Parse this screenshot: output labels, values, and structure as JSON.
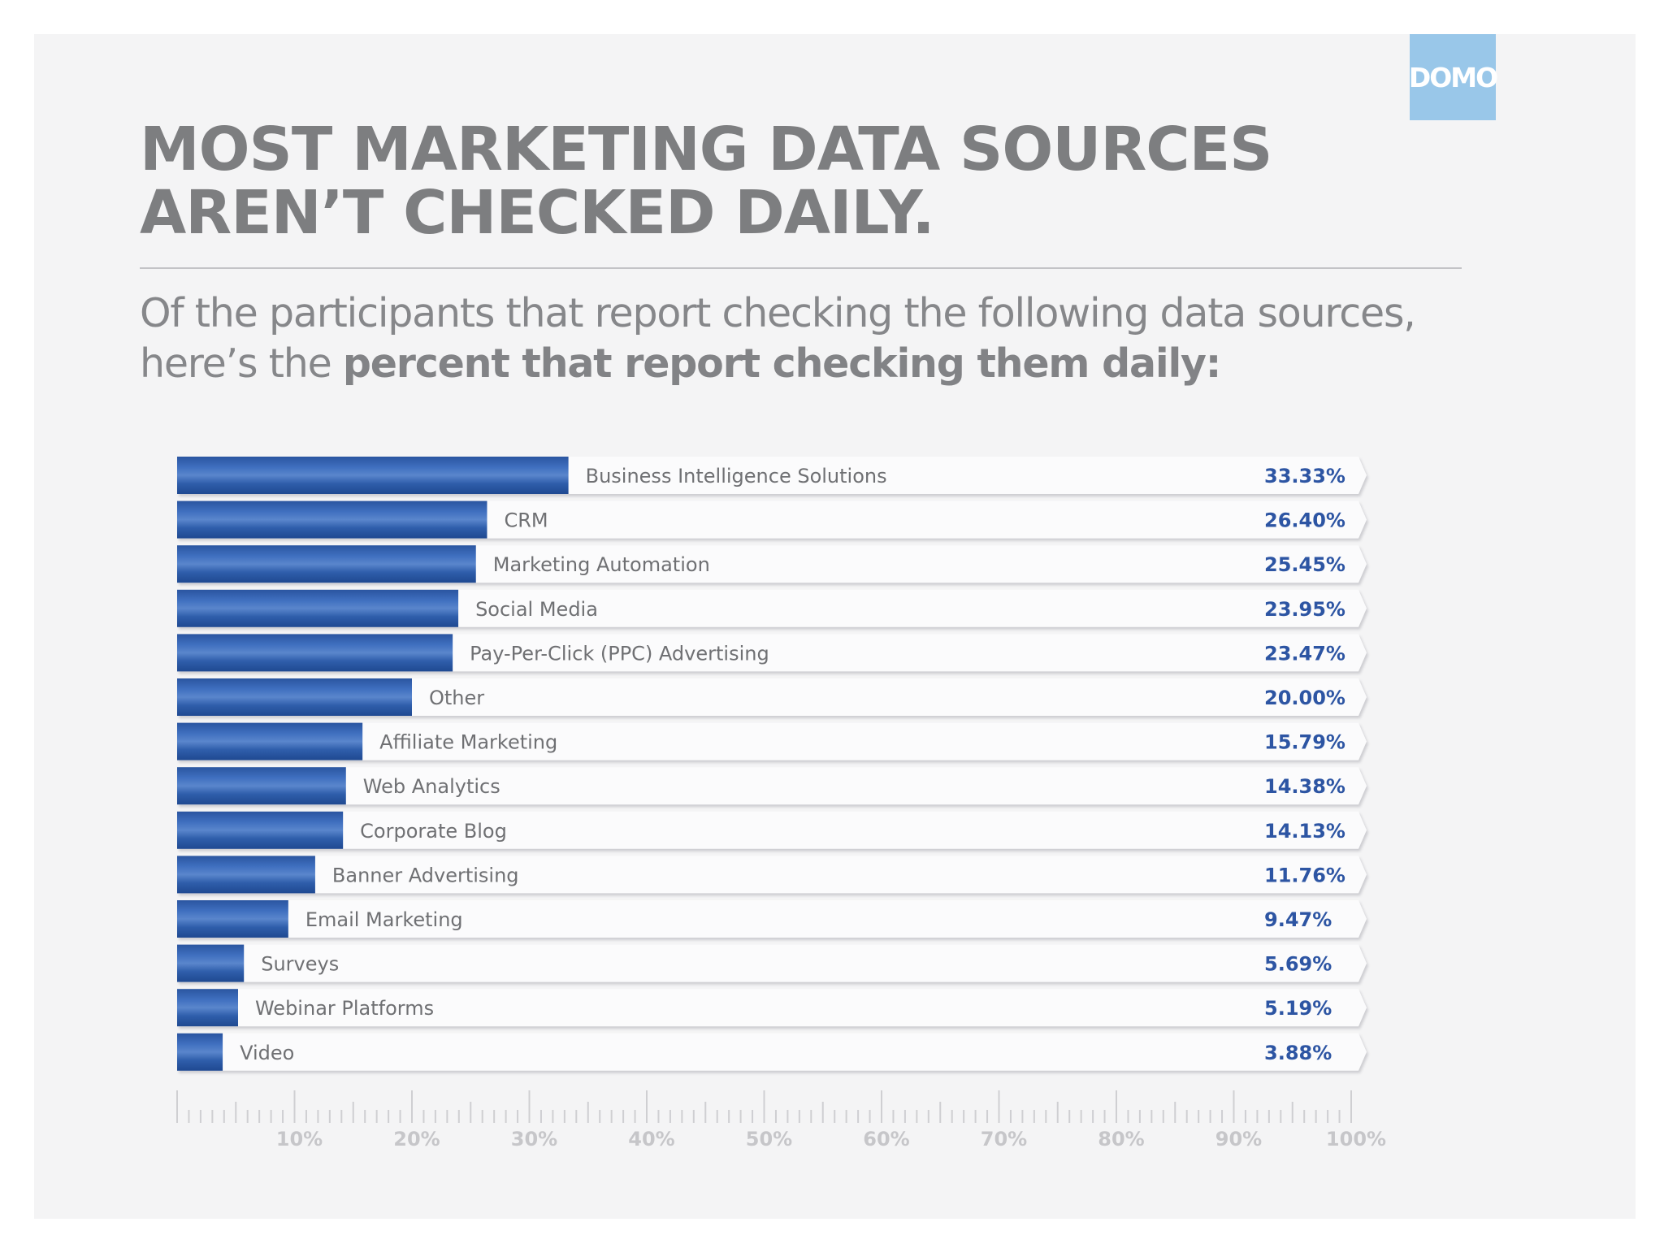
{
  "brand": {
    "logo_text": "DOMO",
    "logo_color": "#99c7e9"
  },
  "header": {
    "title_line1": "MOST MARKETING DATA SOURCES",
    "title_line2": "AREN’T CHECKED DAILY.",
    "subtitle_line1": "Of the participants that report checking the following data sources,",
    "subtitle_line2_prefix": "here’s the ",
    "subtitle_line2_bold": "percent that report checking them daily:"
  },
  "colors": {
    "bar": "#2c5aa6",
    "bar_highlight": "#5a86cc",
    "value_text": "#2d55a3",
    "track": "#fbfbfc"
  },
  "chart_data": {
    "type": "bar",
    "orientation": "horizontal",
    "title": "",
    "xlabel": "",
    "ylabel": "",
    "xlim": [
      0,
      100
    ],
    "grid": false,
    "categories": [
      "Business Intelligence Solutions",
      "CRM",
      "Marketing Automation",
      "Social Media",
      "Pay-Per-Click (PPC) Advertising",
      "Other",
      "Affiliate Marketing",
      "Web Analytics",
      "Corporate Blog",
      "Banner Advertising",
      "Email Marketing",
      "Surveys",
      "Webinar Platforms",
      "Video"
    ],
    "values": [
      33.33,
      26.4,
      25.45,
      23.95,
      23.47,
      20.0,
      15.79,
      14.38,
      14.13,
      11.76,
      9.47,
      5.69,
      5.19,
      3.88
    ],
    "value_labels": [
      "33.33%",
      "26.40%",
      "25.45%",
      "23.95%",
      "23.47%",
      "20.00%",
      "15.79%",
      "14.38%",
      "14.13%",
      "11.76%",
      "9.47%",
      "5.69%",
      "5.19%",
      "3.88%"
    ],
    "tick_values": [
      10,
      20,
      30,
      40,
      50,
      60,
      70,
      80,
      90,
      100
    ],
    "tick_labels": [
      "10%",
      "20%",
      "30%",
      "40%",
      "50%",
      "60%",
      "70%",
      "80%",
      "90%",
      "100%"
    ]
  }
}
